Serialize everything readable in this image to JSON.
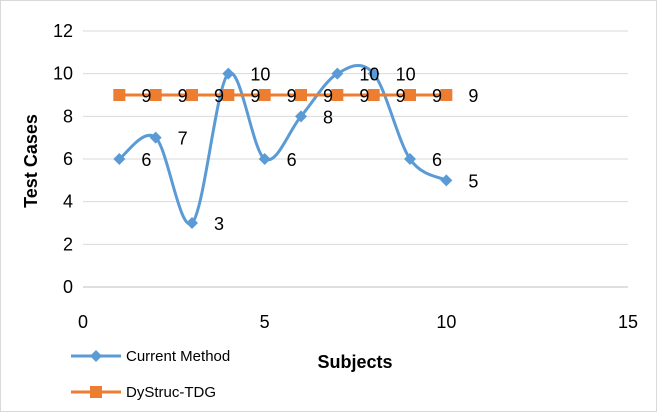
{
  "chart_data": {
    "type": "scatter",
    "xlabel": "Subjects",
    "ylabel": "Test Cases",
    "xlim": [
      0,
      15
    ],
    "ylim": [
      0,
      12
    ],
    "xticks": [
      0,
      5,
      10,
      15
    ],
    "yticks": [
      0,
      2,
      4,
      6,
      8,
      10,
      12
    ],
    "grid": "horizontal",
    "legend_position": "bottom-left",
    "series": [
      {
        "name": "Current Method",
        "color": "#5b9bd5",
        "marker": "diamond",
        "smooth": true,
        "x": [
          1,
          2,
          3,
          4,
          5,
          6,
          7,
          8,
          9,
          10
        ],
        "y": [
          6,
          7,
          3,
          10,
          6,
          8,
          10,
          10,
          6,
          5
        ],
        "labels": [
          "6",
          "7",
          "3",
          "10",
          "6",
          "8",
          "10",
          "10",
          "6",
          "5"
        ]
      },
      {
        "name": "DyStruc-TDG",
        "color": "#ed7d31",
        "marker": "square",
        "smooth": false,
        "x": [
          1,
          2,
          3,
          4,
          5,
          6,
          7,
          8,
          9,
          10
        ],
        "y": [
          9,
          9,
          9,
          9,
          9,
          9,
          9,
          9,
          9,
          9
        ],
        "labels": [
          "9",
          "9",
          "9",
          "9",
          "9",
          "9",
          "9",
          "9",
          "9",
          "9"
        ]
      }
    ]
  }
}
